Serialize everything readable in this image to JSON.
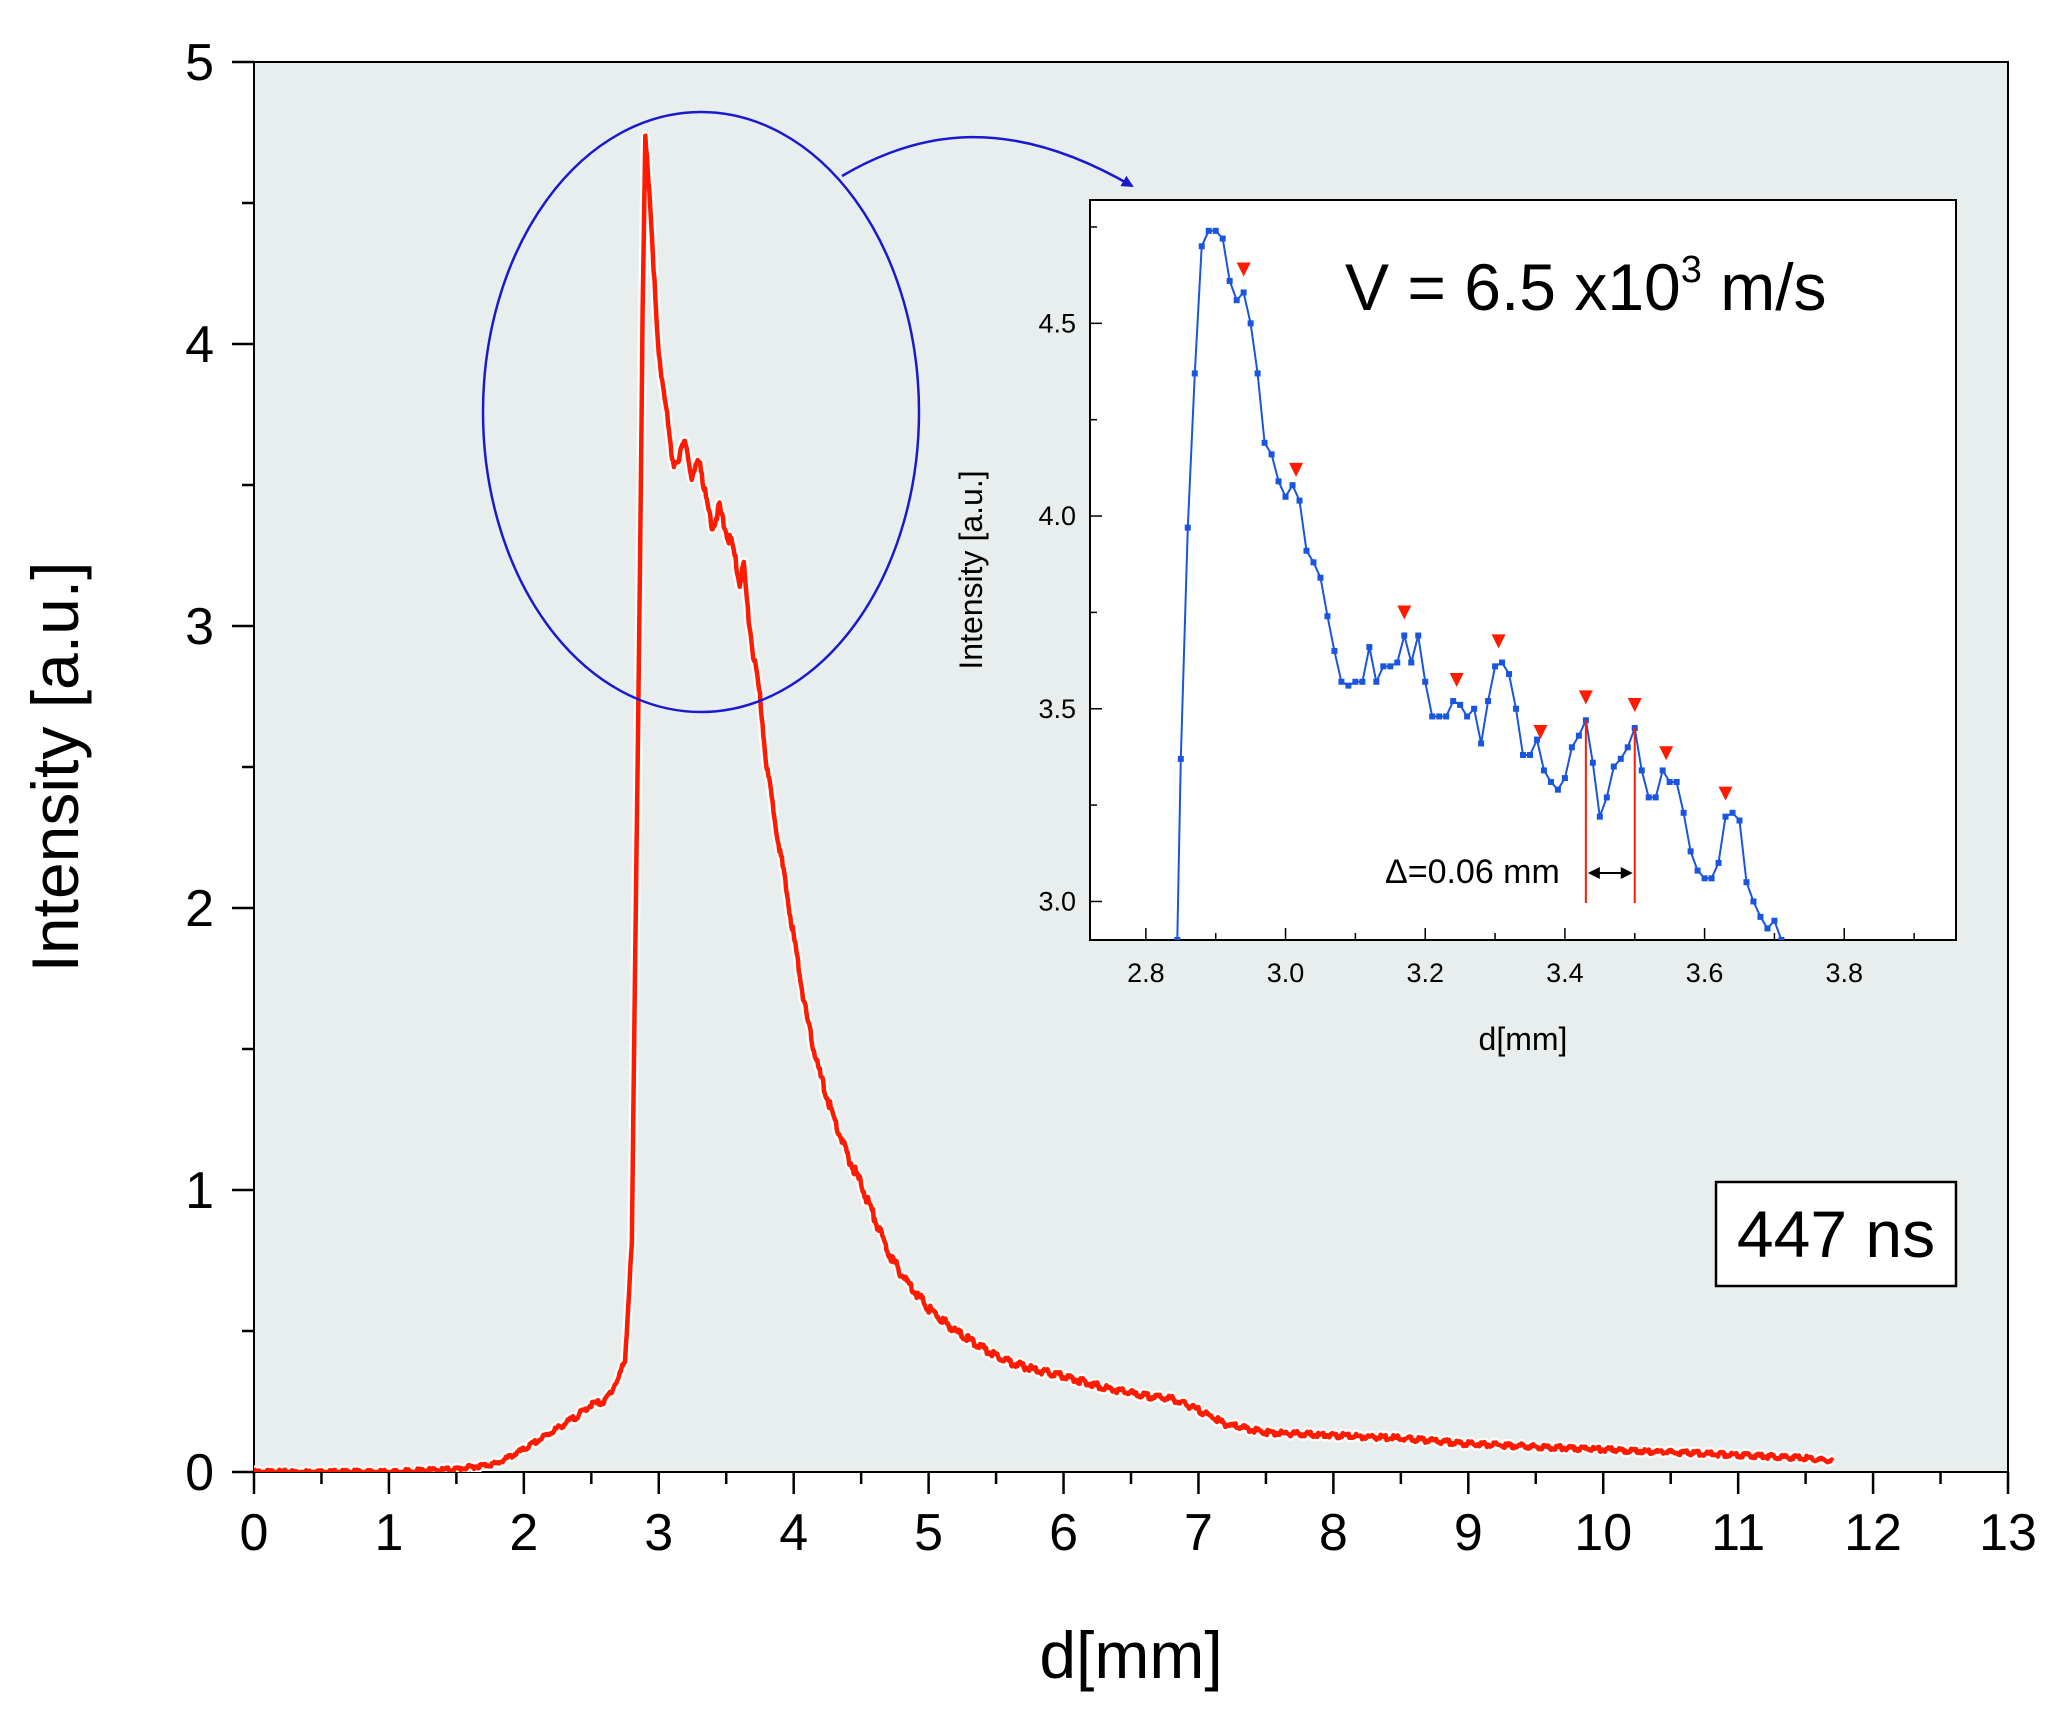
{
  "chart_data": [
    {
      "type": "line",
      "role": "main",
      "xlabel": "d[mm]",
      "ylabel": "Intensity [a.u.]",
      "xlim": [
        0,
        13
      ],
      "ylim": [
        0,
        5
      ],
      "xticks": [
        "0",
        "1",
        "2",
        "3",
        "4",
        "5",
        "6",
        "7",
        "8",
        "9",
        "10",
        "11",
        "12",
        "13"
      ],
      "yticks": [
        "0",
        "1",
        "2",
        "3",
        "4",
        "5"
      ],
      "grid": false,
      "colors": {
        "plot_bg": "#e8eeee",
        "line": "#ff1a00",
        "annotation": "#1a1acc"
      },
      "annotation": "447 ns",
      "series": [
        {
          "color": "#ff1a00",
          "points": [
            [
              0.0,
              0.0
            ],
            [
              0.5,
              0.0
            ],
            [
              1.0,
              0.0
            ],
            [
              1.5,
              0.01
            ],
            [
              1.8,
              0.03
            ],
            [
              2.0,
              0.08
            ],
            [
              2.2,
              0.14
            ],
            [
              2.4,
              0.2
            ],
            [
              2.5,
              0.24
            ],
            [
              2.6,
              0.25
            ],
            [
              2.7,
              0.33
            ],
            [
              2.75,
              0.4
            ],
            [
              2.8,
              0.8
            ],
            [
              2.83,
              2.0
            ],
            [
              2.86,
              3.2
            ],
            [
              2.88,
              4.1
            ],
            [
              2.9,
              4.72
            ],
            [
              2.93,
              4.55
            ],
            [
              2.95,
              4.38
            ],
            [
              2.98,
              4.1
            ],
            [
              3.0,
              3.95
            ],
            [
              3.05,
              3.8
            ],
            [
              3.1,
              3.57
            ],
            [
              3.15,
              3.6
            ],
            [
              3.2,
              3.65
            ],
            [
              3.25,
              3.52
            ],
            [
              3.3,
              3.6
            ],
            [
              3.35,
              3.45
            ],
            [
              3.4,
              3.35
            ],
            [
              3.45,
              3.42
            ],
            [
              3.5,
              3.33
            ],
            [
              3.55,
              3.28
            ],
            [
              3.6,
              3.15
            ],
            [
              3.63,
              3.22
            ],
            [
              3.66,
              3.05
            ],
            [
              3.7,
              2.9
            ],
            [
              3.75,
              2.75
            ],
            [
              3.8,
              2.5
            ],
            [
              3.9,
              2.2
            ],
            [
              4.0,
              1.9
            ],
            [
              4.1,
              1.6
            ],
            [
              4.2,
              1.4
            ],
            [
              4.3,
              1.25
            ],
            [
              4.4,
              1.12
            ],
            [
              4.5,
              1.02
            ],
            [
              4.6,
              0.9
            ],
            [
              4.7,
              0.78
            ],
            [
              4.8,
              0.7
            ],
            [
              5.0,
              0.58
            ],
            [
              5.2,
              0.5
            ],
            [
              5.4,
              0.44
            ],
            [
              5.6,
              0.39
            ],
            [
              5.8,
              0.36
            ],
            [
              6.0,
              0.34
            ],
            [
              6.3,
              0.3
            ],
            [
              6.6,
              0.27
            ],
            [
              6.8,
              0.26
            ],
            [
              7.0,
              0.22
            ],
            [
              7.2,
              0.17
            ],
            [
              7.5,
              0.14
            ],
            [
              8.0,
              0.13
            ],
            [
              8.5,
              0.12
            ],
            [
              9.0,
              0.1
            ],
            [
              9.5,
              0.09
            ],
            [
              10.0,
              0.08
            ],
            [
              10.5,
              0.07
            ],
            [
              11.0,
              0.06
            ],
            [
              11.5,
              0.05
            ],
            [
              11.7,
              0.04
            ]
          ]
        }
      ]
    },
    {
      "type": "line",
      "role": "inset",
      "xlabel": "d[mm]",
      "ylabel": "Intensity [a.u.]",
      "xlim": [
        2.72,
        3.96
      ],
      "ylim": [
        2.9,
        4.82
      ],
      "xticks": [
        "2.8",
        "3.0",
        "3.2",
        "3.4",
        "3.6",
        "3.8"
      ],
      "yticks": [
        "3.0",
        "3.5",
        "4.0",
        "4.5"
      ],
      "grid": false,
      "colors": {
        "plot_bg": "#ffffff",
        "line": "#1a55dd",
        "markers": "#ff1a00"
      },
      "velocity": {
        "prefix": "V = 6.5 x10",
        "exponent": "3",
        "suffix": " m/s"
      },
      "delta_label": "Δ=0.06 mm",
      "delta_bounds": [
        3.43,
        3.5
      ],
      "peak_markers": [
        2.94,
        3.015,
        3.17,
        3.245,
        3.305,
        3.365,
        3.43,
        3.5,
        3.545,
        3.63
      ],
      "series": [
        {
          "color": "#1a55dd",
          "points": [
            [
              2.845,
              2.9
            ],
            [
              2.85,
              3.37
            ],
            [
              2.86,
              3.97
            ],
            [
              2.87,
              4.37
            ],
            [
              2.88,
              4.7
            ],
            [
              2.89,
              4.74
            ],
            [
              2.9,
              4.74
            ],
            [
              2.91,
              4.72
            ],
            [
              2.92,
              4.61
            ],
            [
              2.93,
              4.56
            ],
            [
              2.94,
              4.58
            ],
            [
              2.95,
              4.5
            ],
            [
              2.96,
              4.37
            ],
            [
              2.97,
              4.19
            ],
            [
              2.98,
              4.16
            ],
            [
              2.99,
              4.09
            ],
            [
              3.0,
              4.05
            ],
            [
              3.01,
              4.08
            ],
            [
              3.02,
              4.04
            ],
            [
              3.03,
              3.91
            ],
            [
              3.04,
              3.88
            ],
            [
              3.05,
              3.84
            ],
            [
              3.06,
              3.74
            ],
            [
              3.07,
              3.65
            ],
            [
              3.08,
              3.57
            ],
            [
              3.09,
              3.56
            ],
            [
              3.1,
              3.57
            ],
            [
              3.11,
              3.57
            ],
            [
              3.12,
              3.66
            ],
            [
              3.13,
              3.57
            ],
            [
              3.14,
              3.61
            ],
            [
              3.15,
              3.61
            ],
            [
              3.16,
              3.62
            ],
            [
              3.17,
              3.69
            ],
            [
              3.18,
              3.62
            ],
            [
              3.19,
              3.69
            ],
            [
              3.2,
              3.57
            ],
            [
              3.21,
              3.48
            ],
            [
              3.22,
              3.48
            ],
            [
              3.23,
              3.48
            ],
            [
              3.24,
              3.52
            ],
            [
              3.25,
              3.51
            ],
            [
              3.26,
              3.48
            ],
            [
              3.27,
              3.5
            ],
            [
              3.28,
              3.41
            ],
            [
              3.29,
              3.52
            ],
            [
              3.3,
              3.61
            ],
            [
              3.31,
              3.62
            ],
            [
              3.32,
              3.59
            ],
            [
              3.33,
              3.5
            ],
            [
              3.34,
              3.38
            ],
            [
              3.35,
              3.38
            ],
            [
              3.36,
              3.42
            ],
            [
              3.37,
              3.34
            ],
            [
              3.38,
              3.31
            ],
            [
              3.39,
              3.29
            ],
            [
              3.4,
              3.32
            ],
            [
              3.41,
              3.4
            ],
            [
              3.42,
              3.43
            ],
            [
              3.43,
              3.47
            ],
            [
              3.44,
              3.36
            ],
            [
              3.45,
              3.22
            ],
            [
              3.46,
              3.27
            ],
            [
              3.47,
              3.35
            ],
            [
              3.48,
              3.37
            ],
            [
              3.49,
              3.4
            ],
            [
              3.5,
              3.45
            ],
            [
              3.51,
              3.34
            ],
            [
              3.52,
              3.27
            ],
            [
              3.53,
              3.27
            ],
            [
              3.54,
              3.34
            ],
            [
              3.55,
              3.31
            ],
            [
              3.56,
              3.31
            ],
            [
              3.57,
              3.23
            ],
            [
              3.58,
              3.13
            ],
            [
              3.59,
              3.08
            ],
            [
              3.6,
              3.06
            ],
            [
              3.61,
              3.06
            ],
            [
              3.62,
              3.1
            ],
            [
              3.63,
              3.22
            ],
            [
              3.64,
              3.23
            ],
            [
              3.65,
              3.21
            ],
            [
              3.66,
              3.05
            ],
            [
              3.67,
              3.0
            ],
            [
              3.68,
              2.96
            ],
            [
              3.69,
              2.93
            ],
            [
              3.7,
              2.95
            ],
            [
              3.71,
              2.9
            ]
          ]
        }
      ]
    }
  ]
}
